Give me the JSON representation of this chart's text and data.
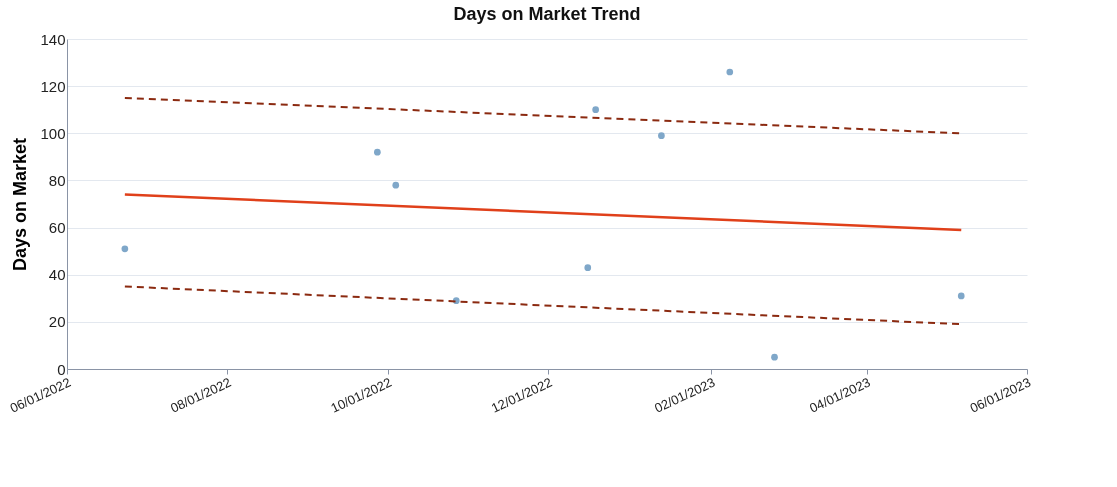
{
  "chart_data": {
    "type": "scatter",
    "title": "Days on Market Trend",
    "ylabel": "Days on Market",
    "xlim": [
      "2022-06-01",
      "2023-06-01"
    ],
    "xticks": [
      {
        "value": "2022-06-01",
        "label": "06/01/2022"
      },
      {
        "value": "2022-08-01",
        "label": "08/01/2022"
      },
      {
        "value": "2022-10-01",
        "label": "10/01/2022"
      },
      {
        "value": "2022-12-01",
        "label": "12/01/2022"
      },
      {
        "value": "2023-02-01",
        "label": "02/01/2023"
      },
      {
        "value": "2023-04-01",
        "label": "04/01/2023"
      },
      {
        "value": "2023-06-01",
        "label": "06/01/2023"
      }
    ],
    "ylim": [
      0,
      140
    ],
    "yticks": [
      0,
      20,
      40,
      60,
      80,
      100,
      120,
      140
    ],
    "grid": "y",
    "series": [
      {
        "marker": "circle",
        "color": "#7fa7c9",
        "x": [
          "2022-06-23",
          "2022-09-27",
          "2022-10-04",
          "2022-10-27",
          "2022-12-16",
          "2022-12-19",
          "2023-01-13",
          "2023-02-08",
          "2023-02-25",
          "2023-05-07"
        ],
        "values": [
          51,
          92,
          78,
          29,
          43,
          110,
          99,
          126,
          5,
          31
        ]
      },
      {
        "type": "line",
        "line_style": "solid",
        "color": "#e0401a",
        "x": [
          "2022-06-23",
          "2023-05-07"
        ],
        "values": [
          74,
          59
        ]
      },
      {
        "type": "line",
        "line_style": "dashed",
        "color": "#8b2a10",
        "x": [
          "2022-06-23",
          "2023-05-07"
        ],
        "values": [
          115,
          100
        ]
      },
      {
        "type": "line",
        "line_style": "dashed",
        "color": "#8b2a10",
        "x": [
          "2022-06-23",
          "2023-05-07"
        ],
        "values": [
          35,
          19
        ]
      }
    ]
  }
}
